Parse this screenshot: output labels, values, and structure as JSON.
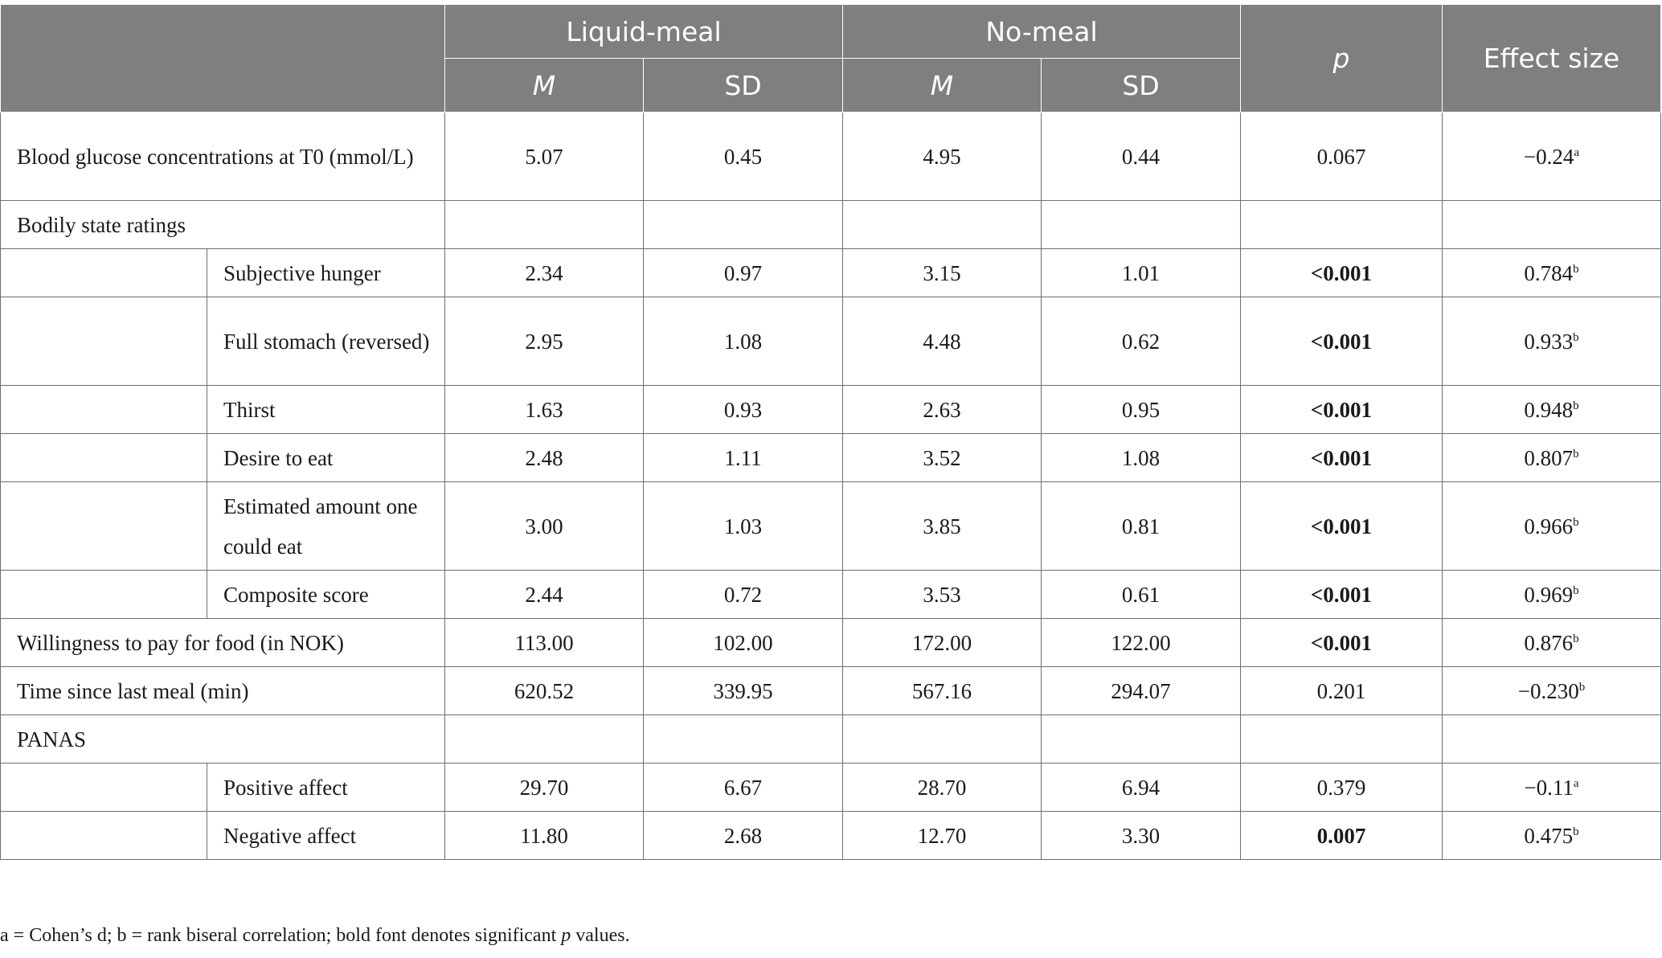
{
  "header": {
    "group_liquid": "Liquid-meal",
    "group_nomeal": "No-meal",
    "p": "p",
    "effect_size": "Effect size",
    "m": "M",
    "sd": "SD"
  },
  "rows": [
    {
      "label": "Blood glucose concentrations at T0 (mmol/L)",
      "level": 0,
      "lm_m": "5.07",
      "lm_sd": "0.45",
      "nm_m": "4.95",
      "nm_sd": "0.44",
      "p": "0.067",
      "p_bold": false,
      "es": "−0.24",
      "es_sup": "a"
    },
    {
      "label": "Bodily state ratings",
      "level": 0,
      "section": true
    },
    {
      "label": "Subjective hunger",
      "level": 1,
      "lm_m": "2.34",
      "lm_sd": "0.97",
      "nm_m": "3.15",
      "nm_sd": "1.01",
      "p": "<0.001",
      "p_bold": true,
      "es": "0.784",
      "es_sup": "b"
    },
    {
      "label": "Full stomach (reversed)",
      "level": 1,
      "lm_m": "2.95",
      "lm_sd": "1.08",
      "nm_m": "4.48",
      "nm_sd": "0.62",
      "p": "<0.001",
      "p_bold": true,
      "es": "0.933",
      "es_sup": "b"
    },
    {
      "label": "Thirst",
      "level": 1,
      "lm_m": "1.63",
      "lm_sd": "0.93",
      "nm_m": "2.63",
      "nm_sd": "0.95",
      "p": "<0.001",
      "p_bold": true,
      "es": "0.948",
      "es_sup": "b"
    },
    {
      "label": "Desire to eat",
      "level": 1,
      "lm_m": "2.48",
      "lm_sd": "1.11",
      "nm_m": "3.52",
      "nm_sd": "1.08",
      "p": "<0.001",
      "p_bold": true,
      "es": "0.807",
      "es_sup": "b"
    },
    {
      "label": "Estimated amount one could eat",
      "level": 1,
      "lm_m": "3.00",
      "lm_sd": "1.03",
      "nm_m": "3.85",
      "nm_sd": "0.81",
      "p": "<0.001",
      "p_bold": true,
      "es": "0.966",
      "es_sup": "b"
    },
    {
      "label": "Composite score",
      "level": 1,
      "lm_m": "2.44",
      "lm_sd": "0.72",
      "nm_m": "3.53",
      "nm_sd": "0.61",
      "p": "<0.001",
      "p_bold": true,
      "es": "0.969",
      "es_sup": "b"
    },
    {
      "label": "Willingness to pay for food (in NOK)",
      "level": 0,
      "lm_m": "113.00",
      "lm_sd": "102.00",
      "nm_m": "172.00",
      "nm_sd": "122.00",
      "p": "<0.001",
      "p_bold": true,
      "es": "0.876",
      "es_sup": "b"
    },
    {
      "label": "Time since last meal (min)",
      "level": 0,
      "lm_m": "620.52",
      "lm_sd": "339.95",
      "nm_m": "567.16",
      "nm_sd": "294.07",
      "p": "0.201",
      "p_bold": false,
      "es": "−0.230",
      "es_sup": "b"
    },
    {
      "label": "PANAS",
      "level": 0,
      "section": true
    },
    {
      "label": "Positive affect",
      "level": 1,
      "lm_m": "29.70",
      "lm_sd": "6.67",
      "nm_m": "28.70",
      "nm_sd": "6.94",
      "p": "0.379",
      "p_bold": false,
      "es": "−0.11",
      "es_sup": "a"
    },
    {
      "label": "Negative affect",
      "level": 1,
      "lm_m": "11.80",
      "lm_sd": "2.68",
      "nm_m": "12.70",
      "nm_sd": "3.30",
      "p": "0.007",
      "p_bold": true,
      "es": "0.475",
      "es_sup": "b"
    }
  ],
  "footnote": {
    "before": "a = Cohen’s d; b = rank biseral correlation; bold font denotes significant ",
    "italic": "p",
    "after": " values."
  }
}
